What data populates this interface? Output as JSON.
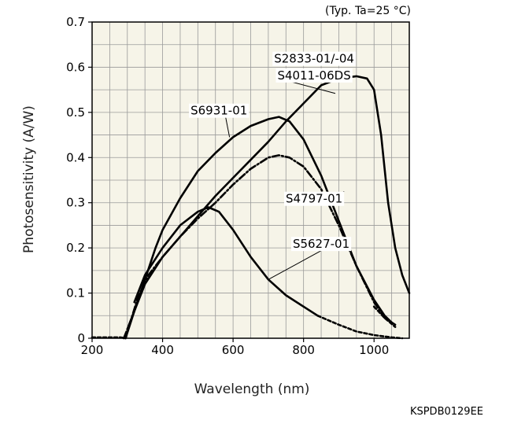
{
  "chart_data": {
    "type": "line",
    "note": "(Typ. Ta=25 °C)",
    "xlabel": "Wavelength (nm)",
    "ylabel": "Photosensitivity (A/W)",
    "figure_code": "KSPDB0129EE",
    "xlim": [
      200,
      1100
    ],
    "ylim": [
      0,
      0.7
    ],
    "xticks": [
      200,
      400,
      600,
      800,
      1000
    ],
    "yticks": [
      0,
      0.1,
      0.2,
      0.3,
      0.4,
      0.5,
      0.6,
      0.7
    ],
    "xtick_labels": [
      "200",
      "400",
      "600",
      "800",
      "1000"
    ],
    "ytick_labels": [
      "0",
      "0.1",
      "0.2",
      "0.3",
      "0.4",
      "0.5",
      "0.6",
      "0.7"
    ],
    "grid": true,
    "background": "#f6f4e8",
    "series": [
      {
        "name": "S6931-01",
        "style": "solid",
        "x": [
          300,
          320,
          350,
          380,
          400,
          450,
          500,
          550,
          600,
          650,
          700,
          730,
          760,
          800,
          850,
          900,
          950,
          1000,
          1030,
          1050
        ],
        "y": [
          0.02,
          0.06,
          0.13,
          0.2,
          0.24,
          0.31,
          0.37,
          0.41,
          0.445,
          0.47,
          0.485,
          0.49,
          0.48,
          0.44,
          0.36,
          0.26,
          0.16,
          0.085,
          0.05,
          0.035
        ]
      },
      {
        "name": "S2833-01/-04",
        "style": "solid",
        "x": [
          295,
          320,
          350,
          400,
          450,
          500,
          550,
          600,
          650,
          700,
          750,
          800,
          850,
          900,
          950,
          980,
          1000,
          1020,
          1040,
          1060,
          1080,
          1100
        ],
        "y": [
          0.0,
          0.06,
          0.12,
          0.18,
          0.225,
          0.27,
          0.315,
          0.355,
          0.395,
          0.435,
          0.48,
          0.52,
          0.56,
          0.575,
          0.58,
          0.575,
          0.55,
          0.45,
          0.3,
          0.2,
          0.14,
          0.1
        ]
      },
      {
        "name": "S4797-01",
        "style": "dashdot",
        "x": [
          290,
          310,
          330,
          360,
          400,
          450,
          500,
          550,
          600,
          650,
          700,
          730,
          760,
          800,
          850,
          900,
          950,
          1000,
          1030,
          1060
        ],
        "y": [
          0.0,
          0.04,
          0.09,
          0.14,
          0.18,
          0.225,
          0.265,
          0.3,
          0.34,
          0.375,
          0.4,
          0.405,
          0.4,
          0.38,
          0.33,
          0.25,
          0.16,
          0.08,
          0.045,
          0.03
        ]
      },
      {
        "name": "S5627-01",
        "style": "solid",
        "x": [
          320,
          350,
          400,
          450,
          500,
          530,
          560,
          600,
          650,
          700,
          750,
          800,
          840
        ],
        "y": [
          0.08,
          0.14,
          0.2,
          0.25,
          0.28,
          0.29,
          0.28,
          0.24,
          0.18,
          0.13,
          0.095,
          0.07,
          0.05
        ]
      },
      {
        "name": "S5627-01",
        "style": "dashed",
        "x": [
          840,
          900,
          950,
          1000,
          1050,
          1080
        ],
        "y": [
          0.05,
          0.03,
          0.015,
          0.007,
          0.002,
          0.0
        ]
      },
      {
        "name": "",
        "style": "dashed",
        "x": [
          200,
          250,
          280,
          295
        ],
        "y": [
          0.002,
          0.002,
          0.002,
          0.0
        ]
      },
      {
        "name": "",
        "style": "dashed",
        "x": [
          1000,
          1030,
          1060
        ],
        "y": [
          0.07,
          0.045,
          0.025
        ]
      }
    ],
    "annotations": [
      {
        "text": "S2833-01/-04",
        "x": 830,
        "y": 0.61
      },
      {
        "text": "S4011-06DS",
        "x": 830,
        "y": 0.573
      },
      {
        "text": "S6931-01",
        "x": 560,
        "y": 0.495
      },
      {
        "text": "S4797-01",
        "x": 830,
        "y": 0.3
      },
      {
        "text": "S5627-01",
        "x": 850,
        "y": 0.2
      }
    ],
    "leaders": [
      {
        "from": [
          730,
          0.575
        ],
        "to": [
          890,
          0.542
        ]
      },
      {
        "from": [
          575,
          0.505
        ],
        "to": [
          590,
          0.445
        ]
      },
      {
        "from": [
          870,
          0.296
        ],
        "to": [
          915,
          0.325
        ]
      },
      {
        "from": [
          855,
          0.196
        ],
        "to": [
          700,
          0.13
        ]
      }
    ]
  }
}
